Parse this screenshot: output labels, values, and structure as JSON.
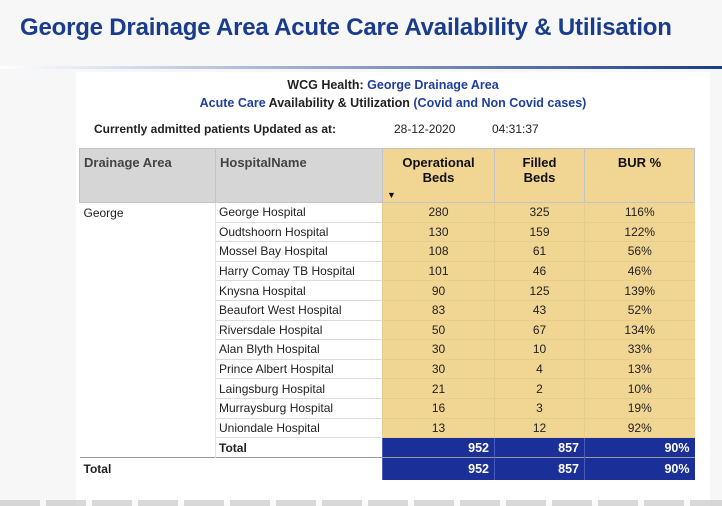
{
  "slide": {
    "title": "George Drainage Area Acute Care Availability & Utilisation"
  },
  "report": {
    "heading_org": "WCG Health:",
    "heading_area": "George Drainage Area",
    "heading_sub_a": "Acute Care",
    "heading_sub_b": "Availability & Utilization",
    "heading_sub_c": "(Covid and Non Covid cases)",
    "updated_label": "Currently admitted patients Updated as at:",
    "updated_date": "28-12-2020",
    "updated_time": "04:31:37"
  },
  "table": {
    "columns": {
      "drainage_area": "Drainage Area",
      "hospital_name": "HospitalName",
      "operational_beds_1": "Operational",
      "operational_beds_2": "Beds",
      "filled_beds_1": "Filled",
      "filled_beds_2": "Beds",
      "bur": "BUR %"
    },
    "area": "George",
    "rows": [
      {
        "hospital": "George Hospital",
        "operational": "280",
        "filled": "325",
        "bur": "116%"
      },
      {
        "hospital": "Oudtshoorn Hospital",
        "operational": "130",
        "filled": "159",
        "bur": "122%"
      },
      {
        "hospital": "Mossel Bay Hospital",
        "operational": "108",
        "filled": "61",
        "bur": "56%"
      },
      {
        "hospital": "Harry Comay TB Hospital",
        "operational": "101",
        "filled": "46",
        "bur": "46%"
      },
      {
        "hospital": "Knysna Hospital",
        "operational": "90",
        "filled": "125",
        "bur": "139%"
      },
      {
        "hospital": "Beaufort West Hospital",
        "operational": "83",
        "filled": "43",
        "bur": "52%"
      },
      {
        "hospital": "Riversdale Hospital",
        "operational": "50",
        "filled": "67",
        "bur": "134%"
      },
      {
        "hospital": "Alan Blyth Hospital",
        "operational": "30",
        "filled": "10",
        "bur": "33%"
      },
      {
        "hospital": "Prince Albert Hospital",
        "operational": "30",
        "filled": "4",
        "bur": "13%"
      },
      {
        "hospital": "Laingsburg Hospital",
        "operational": "21",
        "filled": "2",
        "bur": "10%"
      },
      {
        "hospital": "Murraysburg Hospital",
        "operational": "16",
        "filled": "3",
        "bur": "19%"
      },
      {
        "hospital": "Uniondale Hospital",
        "operational": "13",
        "filled": "12",
        "bur": "92%"
      }
    ],
    "subtotal": {
      "label": "Total",
      "operational": "952",
      "filled": "857",
      "bur": "90%"
    },
    "grand_total": {
      "label": "Total",
      "operational": "952",
      "filled": "857",
      "bur": "90%"
    }
  },
  "colors": {
    "title": "#1a3c8c",
    "value_cells": "#f1d593",
    "total_cells": "#1b2f98",
    "header_gray": "#d6d6d6"
  },
  "icons": {
    "sort": "sort-descending-arrow"
  }
}
